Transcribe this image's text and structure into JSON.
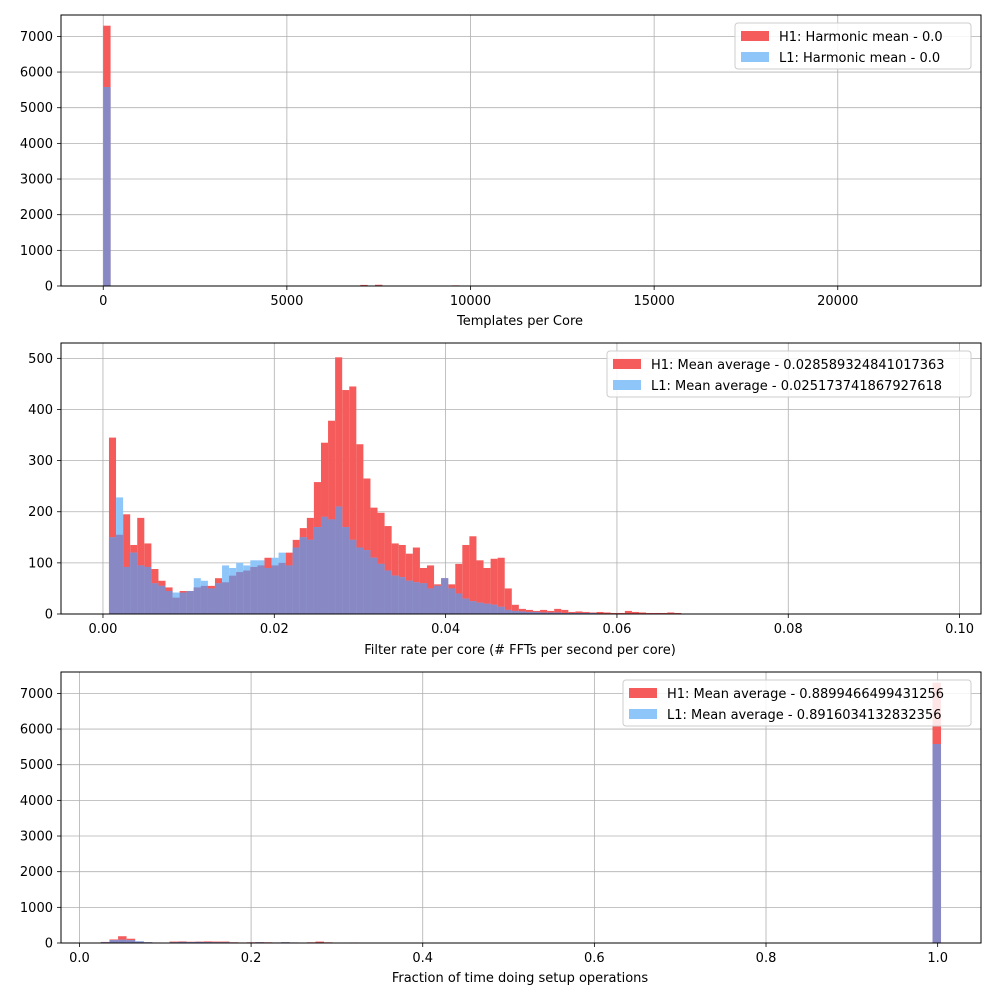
{
  "chart_data": [
    {
      "type": "bar",
      "xlabel": "Templates per Core",
      "ylabel": "",
      "xlim": [
        -1150,
        23900
      ],
      "ylim": [
        0,
        7600
      ],
      "xticks": [
        0,
        5000,
        10000,
        15000,
        20000
      ],
      "xtick_labels": [
        "0",
        "5000",
        "10000",
        "15000",
        "20000"
      ],
      "yticks": [
        0,
        1000,
        2000,
        3000,
        4000,
        5000,
        6000,
        7000
      ],
      "ytick_labels": [
        "0",
        "1000",
        "2000",
        "3000",
        "4000",
        "5000",
        "6000",
        "7000"
      ],
      "grid": true,
      "legend_position": "upper right",
      "series": [
        {
          "name": "H1: Harmonic mean  - 0.0",
          "color": "#f55b5b",
          "bin_width": 200,
          "bins": [
            [
              0,
              7300
            ],
            [
              7000,
              30
            ],
            [
              7400,
              35
            ],
            [
              7800,
              12
            ],
            [
              8600,
              10
            ],
            [
              9300,
              12
            ],
            [
              9500,
              18
            ]
          ]
        },
        {
          "name": "L1: Harmonic mean  - 0.0",
          "color": "#8ec6fa",
          "bin_width": 200,
          "bins": [
            [
              0,
              5580
            ],
            [
              5000,
              10
            ],
            [
              7000,
              12
            ],
            [
              7400,
              15
            ],
            [
              8600,
              8
            ]
          ]
        }
      ],
      "overlap_color": "#8888c4"
    },
    {
      "type": "bar",
      "xlabel": "Filter rate per core (# FFTs per second per core)",
      "ylabel": "",
      "xlim": [
        -0.0049,
        0.1025
      ],
      "ylim": [
        0,
        530
      ],
      "xticks": [
        0.0,
        0.02,
        0.04,
        0.06,
        0.08,
        0.1
      ],
      "xtick_labels": [
        "0.00",
        "0.02",
        "0.04",
        "0.06",
        "0.08",
        "0.10"
      ],
      "yticks": [
        0,
        100,
        200,
        300,
        400,
        500
      ],
      "ytick_labels": [
        "0",
        "100",
        "200",
        "300",
        "400",
        "500"
      ],
      "grid": true,
      "legend_position": "upper right",
      "series": [
        {
          "name": "H1: Mean average - 0.028589324841017363",
          "color": "#f55b5b",
          "bin_start": 0.0007,
          "bin_width": 0.000825,
          "values": [
            345,
            155,
            195,
            135,
            188,
            138,
            88,
            65,
            52,
            32,
            45,
            45,
            52,
            55,
            55,
            70,
            62,
            75,
            82,
            85,
            92,
            95,
            110,
            95,
            100,
            120,
            145,
            168,
            188,
            258,
            335,
            378,
            502,
            438,
            445,
            332,
            265,
            208,
            198,
            172,
            138,
            135,
            118,
            130,
            90,
            95,
            58,
            70,
            58,
            98,
            135,
            152,
            105,
            90,
            108,
            110,
            50,
            18,
            10,
            8,
            6,
            8,
            6,
            10,
            8,
            4,
            5,
            4,
            3,
            4,
            3,
            2,
            2,
            6,
            4,
            3,
            2,
            2,
            2,
            3,
            2,
            1,
            1
          ]
        },
        {
          "name": "L1: Mean average - 0.025173741867927618",
          "color": "#8ec6fa",
          "bin_start": 0.0007,
          "bin_width": 0.000825,
          "values": [
            150,
            228,
            92,
            120,
            95,
            92,
            60,
            55,
            45,
            42,
            42,
            45,
            70,
            65,
            50,
            60,
            95,
            90,
            100,
            95,
            105,
            105,
            90,
            110,
            120,
            95,
            130,
            150,
            145,
            170,
            190,
            185,
            210,
            170,
            145,
            130,
            125,
            110,
            98,
            85,
            75,
            72,
            65,
            62,
            60,
            50,
            55,
            70,
            50,
            40,
            30,
            25,
            22,
            20,
            18,
            14,
            8,
            6,
            5,
            4,
            4,
            3,
            3,
            3,
            2,
            2,
            2,
            2,
            2,
            1,
            1,
            1,
            1,
            1,
            1,
            1,
            1,
            1
          ]
        }
      ],
      "overlap_color": "#8888c4"
    },
    {
      "type": "bar",
      "xlabel": "Fraction of time doing setup operations",
      "ylabel": "",
      "xlim": [
        -0.0215,
        1.0505
      ],
      "ylim": [
        0,
        7600
      ],
      "xticks": [
        0.0,
        0.2,
        0.4,
        0.6,
        0.8,
        1.0
      ],
      "xtick_labels": [
        "0.0",
        "0.2",
        "0.4",
        "0.6",
        "0.8",
        "1.0"
      ],
      "yticks": [
        0,
        1000,
        2000,
        3000,
        4000,
        5000,
        6000,
        7000
      ],
      "ytick_labels": [
        "0",
        "1000",
        "2000",
        "3000",
        "4000",
        "5000",
        "6000",
        "7000"
      ],
      "grid": true,
      "legend_position": "upper right",
      "series": [
        {
          "name": "H1: Mean average - 0.8899466499431256",
          "color": "#f55b5b",
          "bin_width": 0.0099,
          "bins": [
            [
              0.025,
              30
            ],
            [
              0.035,
              100
            ],
            [
              0.045,
              190
            ],
            [
              0.055,
              120
            ],
            [
              0.065,
              40
            ],
            [
              0.075,
              20
            ],
            [
              0.085,
              15
            ],
            [
              0.095,
              10
            ],
            [
              0.105,
              40
            ],
            [
              0.115,
              45
            ],
            [
              0.125,
              35
            ],
            [
              0.135,
              40
            ],
            [
              0.145,
              45
            ],
            [
              0.155,
              40
            ],
            [
              0.165,
              40
            ],
            [
              0.175,
              20
            ],
            [
              0.185,
              15
            ],
            [
              0.195,
              20
            ],
            [
              0.205,
              25
            ],
            [
              0.215,
              20
            ],
            [
              0.225,
              15
            ],
            [
              0.235,
              20
            ],
            [
              0.245,
              15
            ],
            [
              0.255,
              10
            ],
            [
              0.265,
              20
            ],
            [
              0.275,
              40
            ],
            [
              0.285,
              20
            ],
            [
              0.295,
              10
            ],
            [
              0.315,
              15
            ],
            [
              0.325,
              10
            ],
            [
              0.994,
              7300
            ]
          ]
        },
        {
          "name": "L1: Mean average - 0.8916034132832356",
          "color": "#8ec6fa",
          "bin_width": 0.0099,
          "bins": [
            [
              0.025,
              20
            ],
            [
              0.035,
              80
            ],
            [
              0.045,
              90
            ],
            [
              0.055,
              80
            ],
            [
              0.065,
              50
            ],
            [
              0.075,
              20
            ],
            [
              0.085,
              10
            ],
            [
              0.095,
              10
            ],
            [
              0.105,
              20
            ],
            [
              0.115,
              30
            ],
            [
              0.125,
              25
            ],
            [
              0.135,
              30
            ],
            [
              0.145,
              25
            ],
            [
              0.155,
              20
            ],
            [
              0.165,
              20
            ],
            [
              0.175,
              15
            ],
            [
              0.185,
              10
            ],
            [
              0.195,
              15
            ],
            [
              0.205,
              20
            ],
            [
              0.215,
              15
            ],
            [
              0.225,
              15
            ],
            [
              0.235,
              20
            ],
            [
              0.245,
              15
            ],
            [
              0.255,
              10
            ],
            [
              0.265,
              10
            ],
            [
              0.275,
              15
            ],
            [
              0.285,
              10
            ],
            [
              0.315,
              10
            ],
            [
              0.994,
              5580
            ]
          ]
        }
      ],
      "overlap_color": "#8888c4"
    }
  ]
}
